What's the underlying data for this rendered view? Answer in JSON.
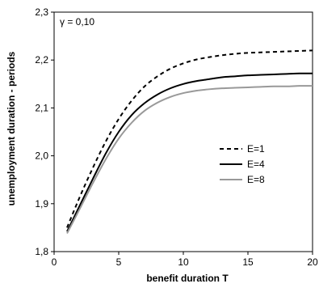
{
  "chart_data": {
    "type": "line",
    "title": "",
    "annotation": "γ = 0,10",
    "xlabel": "benefit duration T",
    "ylabel": "unemployment duration - periods",
    "xlim": [
      0,
      20
    ],
    "ylim": [
      1.8,
      2.3
    ],
    "x_ticks": [
      "0",
      "5",
      "10",
      "15",
      "20"
    ],
    "y_ticks": [
      "1,8",
      "1,9",
      "2,0",
      "2,1",
      "2,2",
      "2,3"
    ],
    "grid": false,
    "legend_position": "right",
    "series": [
      {
        "name": "E=1",
        "style": "dashed",
        "color": "#000000",
        "x": [
          1,
          2,
          3,
          4,
          5,
          6,
          7,
          8,
          9,
          10,
          11,
          12,
          13,
          14,
          15,
          16,
          17,
          18,
          19,
          20
        ],
        "y": [
          1.85,
          1.915,
          1.975,
          2.03,
          2.077,
          2.115,
          2.145,
          2.166,
          2.182,
          2.193,
          2.201,
          2.206,
          2.21,
          2.213,
          2.215,
          2.216,
          2.217,
          2.218,
          2.219,
          2.22
        ]
      },
      {
        "name": "E=4",
        "style": "solid",
        "color": "#000000",
        "x": [
          1,
          2,
          3,
          4,
          5,
          6,
          7,
          8,
          9,
          10,
          11,
          12,
          13,
          14,
          15,
          16,
          17,
          18,
          19,
          20
        ],
        "y": [
          1.842,
          1.897,
          1.952,
          2.005,
          2.05,
          2.085,
          2.11,
          2.128,
          2.141,
          2.15,
          2.156,
          2.16,
          2.164,
          2.166,
          2.168,
          2.169,
          2.17,
          2.171,
          2.172,
          2.172
        ]
      },
      {
        "name": "E=8",
        "style": "solid",
        "color": "#999999",
        "x": [
          1,
          2,
          3,
          4,
          5,
          6,
          7,
          8,
          9,
          10,
          11,
          12,
          13,
          14,
          15,
          16,
          17,
          18,
          19,
          20
        ],
        "y": [
          1.838,
          1.89,
          1.943,
          1.993,
          2.036,
          2.069,
          2.094,
          2.111,
          2.123,
          2.131,
          2.136,
          2.139,
          2.141,
          2.142,
          2.143,
          2.144,
          2.145,
          2.145,
          2.146,
          2.146
        ]
      }
    ]
  }
}
